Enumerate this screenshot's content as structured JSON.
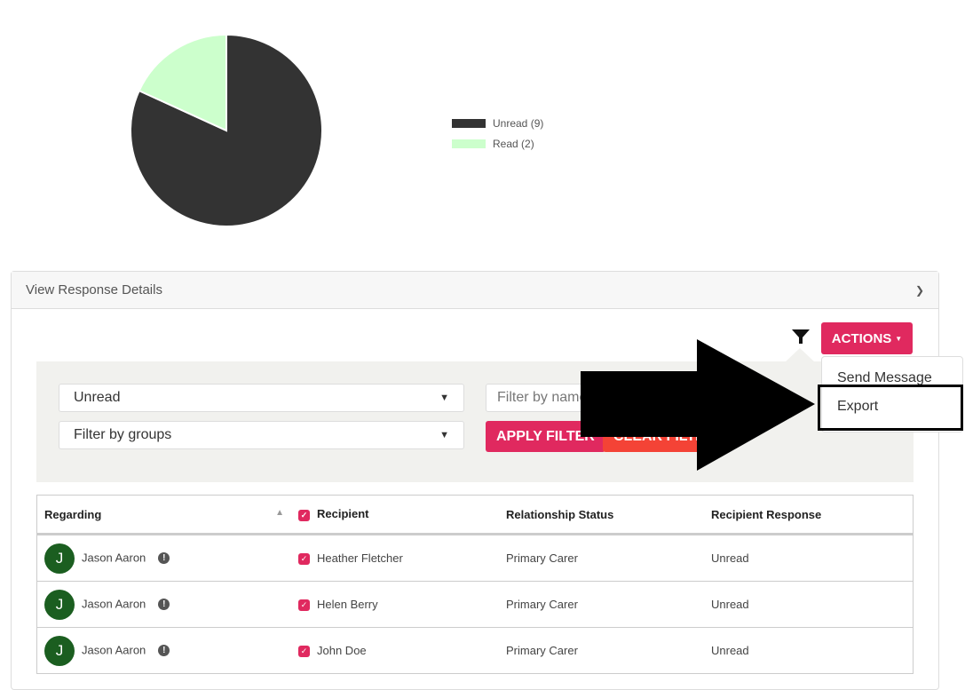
{
  "chart_data": {
    "type": "pie",
    "slices": [
      {
        "label": "Unread (9)",
        "value": 9,
        "color": "#333333"
      },
      {
        "label": "Read (2)",
        "value": 2,
        "color": "#ccffcc"
      }
    ],
    "legend": "right"
  },
  "panel": {
    "title": "View Response Details"
  },
  "actions": {
    "label": "ACTIONS",
    "menu": [
      "Send Message",
      "Export"
    ]
  },
  "filters": {
    "status": "Unread",
    "groups_placeholder": "Filter by groups",
    "name_placeholder": "Filter by name",
    "apply": "APPLY FILTER",
    "clear": "CLEAR FILTER"
  },
  "table": {
    "headers": [
      "Regarding",
      "Recipient",
      "Relationship Status",
      "Recipient Response"
    ],
    "rows": [
      {
        "initial": "J",
        "regarding": "Jason Aaron",
        "recipient": "Heather Fletcher",
        "relationship": "Primary Carer",
        "response": "Unread"
      },
      {
        "initial": "J",
        "regarding": "Jason Aaron",
        "recipient": "Helen Berry",
        "relationship": "Primary Carer",
        "response": "Unread"
      },
      {
        "initial": "J",
        "regarding": "Jason Aaron",
        "recipient": "John Doe",
        "relationship": "Primary Carer",
        "response": "Unread"
      }
    ]
  }
}
